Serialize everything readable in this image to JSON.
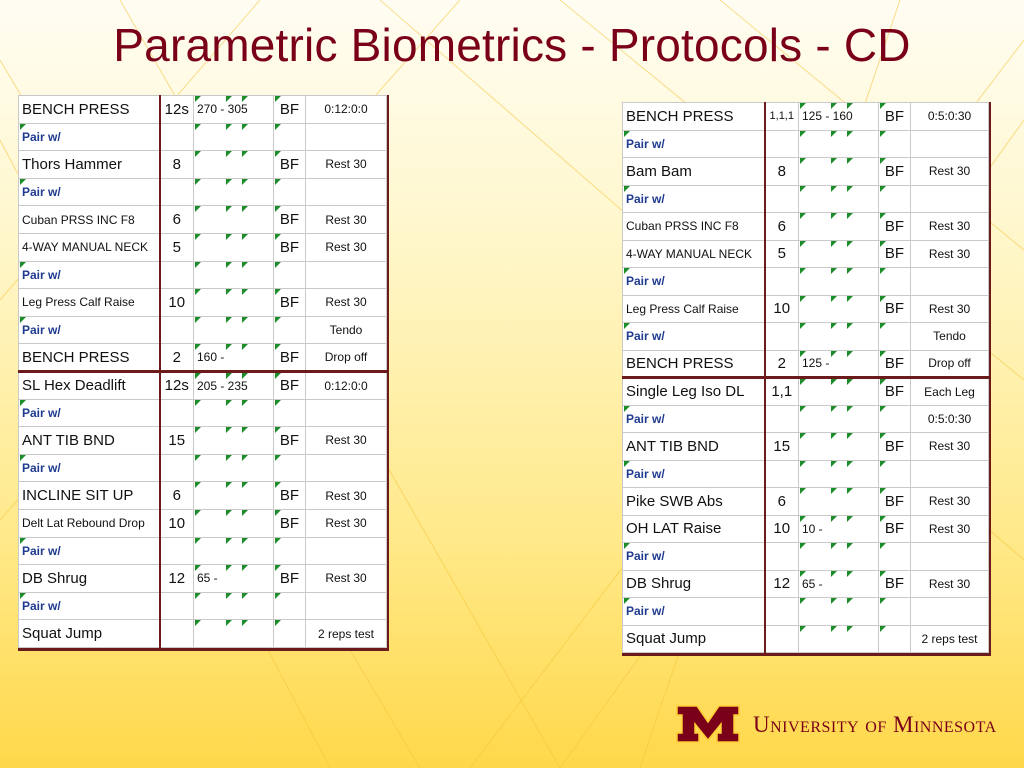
{
  "title": "Parametric Biometrics - Protocols - CD",
  "logo": {
    "name": "University of Minnesota",
    "mark_letter": "M"
  },
  "colors": {
    "maroon": "#7a0019",
    "gold": "#ffcc33",
    "pair_blue": "#1f3b8f",
    "marker_green": "#1d8c2a"
  },
  "left_table": {
    "rows": [
      {
        "exercise": "BENCH PRESS",
        "sets": "12s",
        "weight": "270  -  305",
        "tempo": "BF",
        "notes": "0:12:0:0"
      },
      {
        "exercise": "Pair w/",
        "sets": "",
        "weight": "",
        "tempo": "",
        "notes": "",
        "pair": true
      },
      {
        "exercise": "Thors Hammer",
        "sets": "8",
        "weight": "",
        "tempo": "BF",
        "notes": "Rest 30"
      },
      {
        "exercise": "Pair w/",
        "sets": "",
        "weight": "",
        "tempo": "",
        "notes": "",
        "pair": true
      },
      {
        "exercise": "Cuban PRSS INC F8",
        "sets": "6",
        "weight": "",
        "tempo": "BF",
        "notes": "Rest 30",
        "small": true
      },
      {
        "exercise": "4-WAY MANUAL NECK",
        "sets": "5",
        "weight": "",
        "tempo": "BF",
        "notes": "Rest 30",
        "small": true
      },
      {
        "exercise": "Pair w/",
        "sets": "",
        "weight": "",
        "tempo": "",
        "notes": "",
        "pair": true
      },
      {
        "exercise": "Leg Press Calf Raise",
        "sets": "10",
        "weight": "",
        "tempo": "BF",
        "notes": "Rest 30",
        "small": true
      },
      {
        "exercise": "Pair w/",
        "sets": "",
        "weight": "",
        "tempo": "",
        "notes": "Tendo",
        "pair": true
      },
      {
        "exercise": "BENCH PRESS",
        "sets": "2",
        "weight": "160  -",
        "tempo": "BF",
        "notes": "Drop off"
      },
      {
        "exercise": "SL Hex Deadlift",
        "sets": "12s",
        "weight": "205  -  235",
        "tempo": "BF",
        "notes": "0:12:0:0",
        "sep": true
      },
      {
        "exercise": "Pair w/",
        "sets": "",
        "weight": "",
        "tempo": "",
        "notes": "",
        "pair": true
      },
      {
        "exercise": "ANT TIB BND",
        "sets": "15",
        "weight": "",
        "tempo": "BF",
        "notes": "Rest 30"
      },
      {
        "exercise": "Pair w/",
        "sets": "",
        "weight": "",
        "tempo": "",
        "notes": "",
        "pair": true
      },
      {
        "exercise": "INCLINE SIT UP",
        "sets": "6",
        "weight": "",
        "tempo": "BF",
        "notes": "Rest 30"
      },
      {
        "exercise": "Delt Lat Rebound Drop",
        "sets": "10",
        "weight": "",
        "tempo": "BF",
        "notes": "Rest 30",
        "small": true
      },
      {
        "exercise": "Pair w/",
        "sets": "",
        "weight": "",
        "tempo": "",
        "notes": "",
        "pair": true
      },
      {
        "exercise": "DB Shrug",
        "sets": "12",
        "weight": "65  -",
        "tempo": "BF",
        "notes": "Rest 30"
      },
      {
        "exercise": "Pair w/",
        "sets": "",
        "weight": "",
        "tempo": "",
        "notes": "",
        "pair": true
      },
      {
        "exercise": "Squat Jump",
        "sets": "",
        "weight": "",
        "tempo": "",
        "notes": "2 reps test"
      }
    ]
  },
  "right_table": {
    "rows": [
      {
        "exercise": "BENCH PRESS",
        "sets": "1,1,1",
        "weight": "125  -  160",
        "tempo": "BF",
        "notes": "0:5:0:30",
        "small_sets": true
      },
      {
        "exercise": "Pair w/",
        "sets": "",
        "weight": "",
        "tempo": "",
        "notes": "",
        "pair": true
      },
      {
        "exercise": "Bam Bam",
        "sets": "8",
        "weight": "",
        "tempo": "BF",
        "notes": "Rest 30"
      },
      {
        "exercise": "Pair w/",
        "sets": "",
        "weight": "",
        "tempo": "",
        "notes": "",
        "pair": true
      },
      {
        "exercise": "Cuban PRSS INC F8",
        "sets": "6",
        "weight": "",
        "tempo": "BF",
        "notes": "Rest 30",
        "small": true
      },
      {
        "exercise": "4-WAY MANUAL NECK",
        "sets": "5",
        "weight": "",
        "tempo": "BF",
        "notes": "Rest 30",
        "small": true
      },
      {
        "exercise": "Pair w/",
        "sets": "",
        "weight": "",
        "tempo": "",
        "notes": "",
        "pair": true
      },
      {
        "exercise": "Leg Press Calf Raise",
        "sets": "10",
        "weight": "",
        "tempo": "BF",
        "notes": "Rest 30",
        "small": true
      },
      {
        "exercise": "Pair w/",
        "sets": "",
        "weight": "",
        "tempo": "",
        "notes": "Tendo",
        "pair": true
      },
      {
        "exercise": "BENCH PRESS",
        "sets": "2",
        "weight": "125  -",
        "tempo": "BF",
        "notes": "Drop off"
      },
      {
        "exercise": "Single Leg Iso DL",
        "sets": "1,1",
        "weight": "",
        "tempo": "BF",
        "notes": "Each Leg",
        "sep": true
      },
      {
        "exercise": "Pair w/",
        "sets": "",
        "weight": "",
        "tempo": "",
        "notes": "0:5:0:30",
        "pair": true
      },
      {
        "exercise": "ANT TIB BND",
        "sets": "15",
        "weight": "",
        "tempo": "BF",
        "notes": "Rest 30"
      },
      {
        "exercise": "Pair w/",
        "sets": "",
        "weight": "",
        "tempo": "",
        "notes": "",
        "pair": true
      },
      {
        "exercise": "Pike SWB Abs",
        "sets": "6",
        "weight": "",
        "tempo": "BF",
        "notes": "Rest 30"
      },
      {
        "exercise": "OH LAT Raise",
        "sets": "10",
        "weight": "10  -",
        "tempo": "BF",
        "notes": "Rest 30"
      },
      {
        "exercise": "Pair w/",
        "sets": "",
        "weight": "",
        "tempo": "",
        "notes": "",
        "pair": true
      },
      {
        "exercise": "DB Shrug",
        "sets": "12",
        "weight": "65  -",
        "tempo": "BF",
        "notes": "Rest 30"
      },
      {
        "exercise": "Pair w/",
        "sets": "",
        "weight": "",
        "tempo": "",
        "notes": "",
        "pair": true
      },
      {
        "exercise": "Squat Jump",
        "sets": "",
        "weight": "",
        "tempo": "",
        "notes": "2 reps test"
      }
    ]
  }
}
